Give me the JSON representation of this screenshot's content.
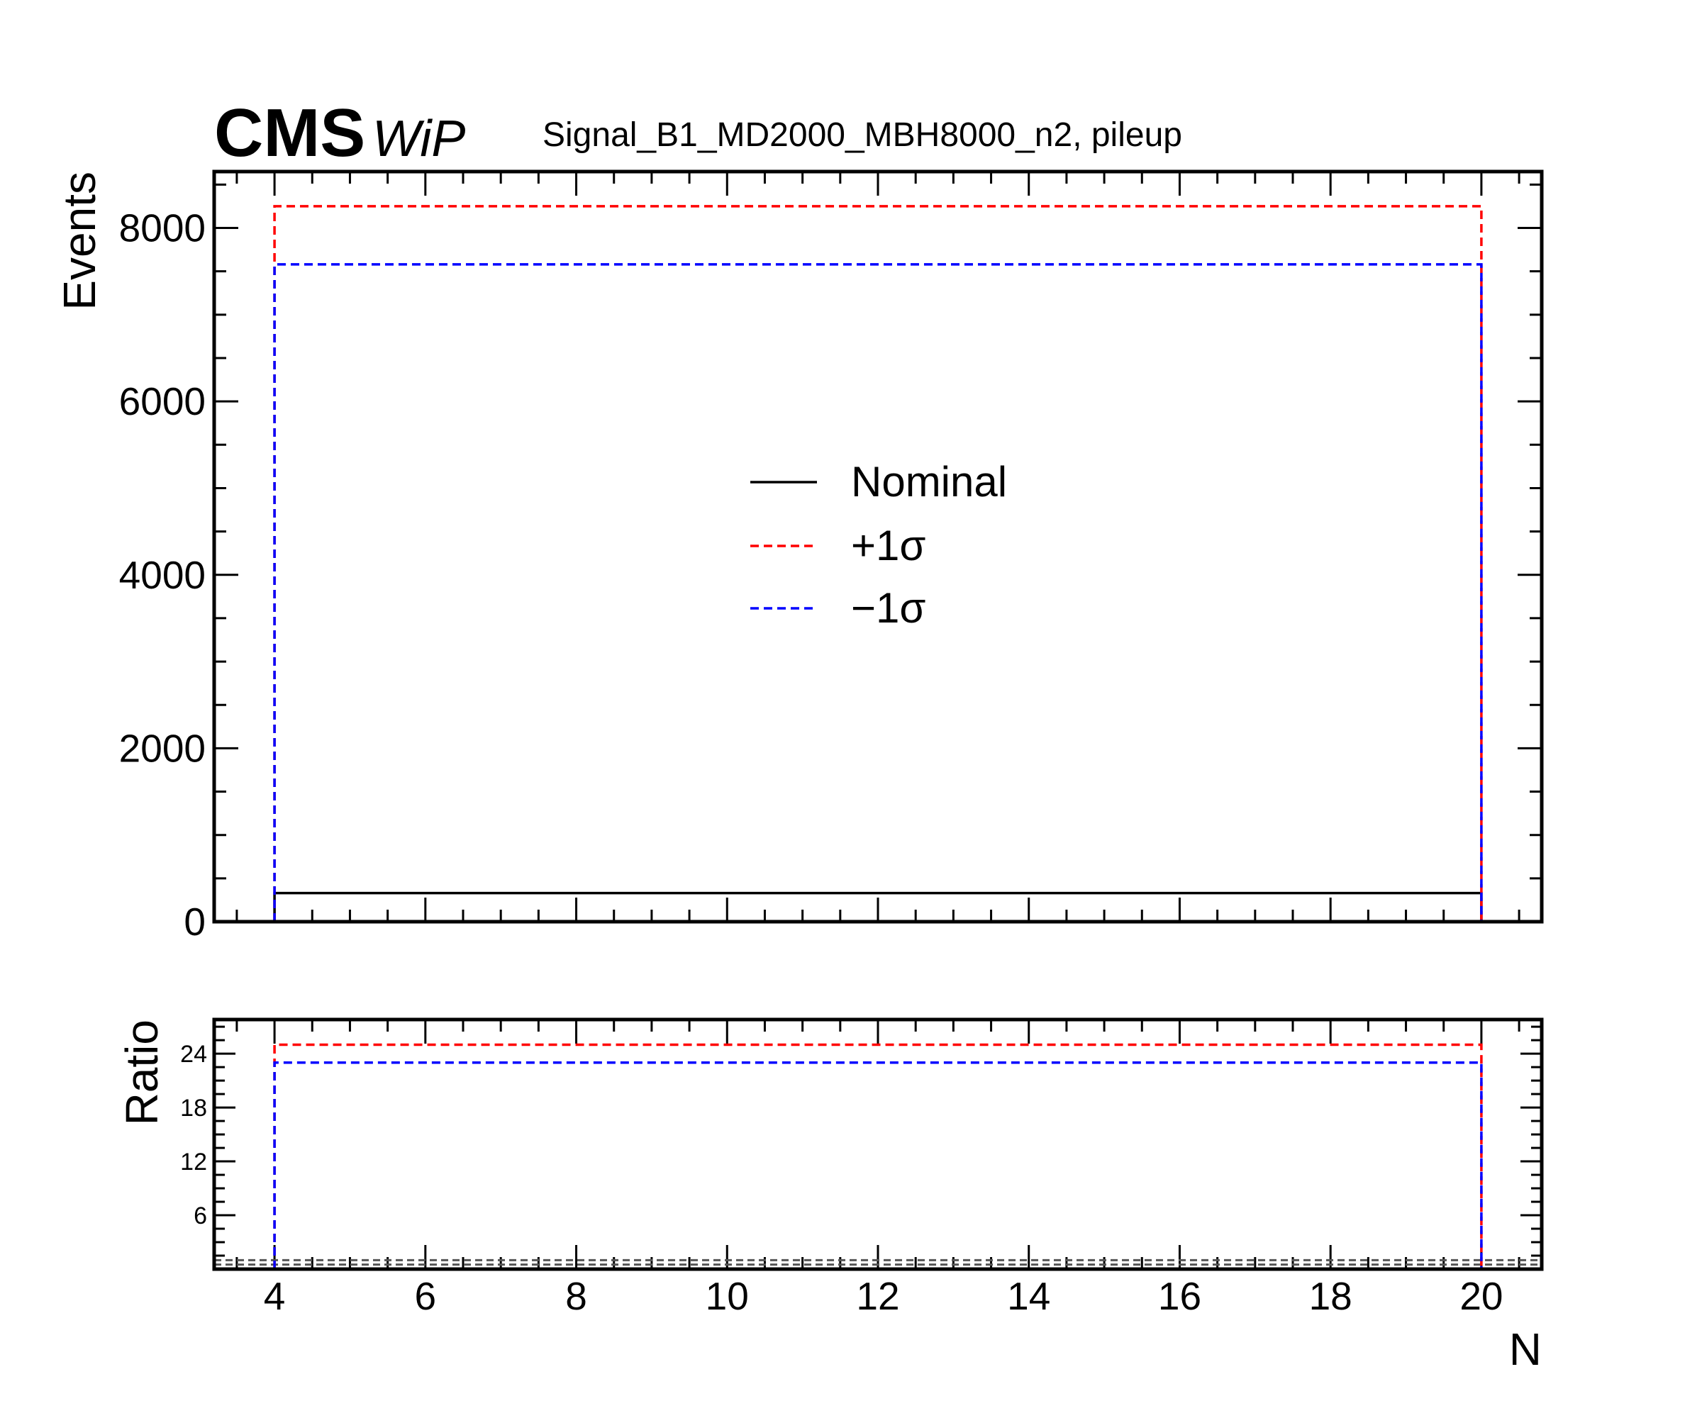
{
  "header": {
    "experiment": "CMS",
    "status": "WiP",
    "title": "Signal_B1_MD2000_MBH8000_n2, pileup"
  },
  "chart_data": [
    {
      "type": "histogram-step",
      "panel": "main",
      "ylabel": "Events",
      "xlabel": "",
      "xlim": [
        3.2,
        20.8
      ],
      "ylim": [
        0,
        8650
      ],
      "y_ticks": [
        0,
        2000,
        4000,
        6000,
        8000
      ],
      "y_tick_labels": [
        "0",
        "2000",
        "4000",
        "6000",
        "8000"
      ],
      "bin_edges": [
        4,
        20
      ],
      "series": [
        {
          "name": "Nominal",
          "values": [
            330
          ],
          "color": "#000000",
          "style": "solid"
        },
        {
          "name": "+1σ",
          "values": [
            8250
          ],
          "color": "#ff0000",
          "style": "dashed"
        },
        {
          "name": "−1σ",
          "values": [
            7580
          ],
          "color": "#0000ff",
          "style": "dashed"
        }
      ],
      "legend": {
        "position": "center",
        "entries": [
          {
            "label": "Nominal",
            "color": "#000000",
            "style": "solid"
          },
          {
            "label": "+1σ",
            "color": "#ff0000",
            "style": "dashed"
          },
          {
            "label": "−1σ",
            "color": "#0000ff",
            "style": "dashed"
          }
        ]
      }
    },
    {
      "type": "histogram-step",
      "panel": "ratio",
      "ylabel": "Ratio",
      "xlabel": "N",
      "xlim": [
        3.2,
        20.8
      ],
      "ylim": [
        0,
        27.8
      ],
      "y_ticks": [
        6,
        12,
        18,
        24
      ],
      "y_tick_labels": [
        "6",
        "12",
        "18",
        "24"
      ],
      "x_ticks": [
        4,
        6,
        8,
        10,
        12,
        14,
        16,
        18,
        20
      ],
      "x_tick_labels": [
        "4",
        "6",
        "8",
        "10",
        "12",
        "14",
        "16",
        "18",
        "20"
      ],
      "bin_edges": [
        4,
        20
      ],
      "series": [
        {
          "name": "+1σ",
          "values": [
            25.0
          ],
          "color": "#ff0000",
          "style": "dashed"
        },
        {
          "name": "−1σ",
          "values": [
            23.0
          ],
          "color": "#0000ff",
          "style": "dashed"
        }
      ],
      "reference_lines": [
        1.0,
        0.5
      ]
    }
  ]
}
